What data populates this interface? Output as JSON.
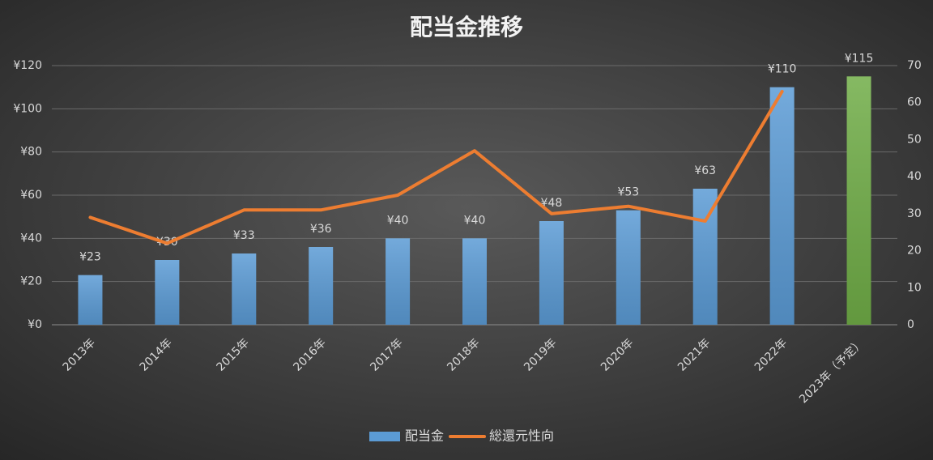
{
  "chart_data": {
    "type": "bar_line",
    "title": "配当金推移",
    "categories": [
      "2013年",
      "2014年",
      "2015年",
      "2016年",
      "2017年",
      "2018年",
      "2019年",
      "2020年",
      "2021年",
      "2022年",
      "2023年（予定）"
    ],
    "series": [
      {
        "name": "配当金",
        "type": "bar",
        "color": "#5b9bd5",
        "colors": [
          "#5b9bd5",
          "#5b9bd5",
          "#5b9bd5",
          "#5b9bd5",
          "#5b9bd5",
          "#5b9bd5",
          "#5b9bd5",
          "#5b9bd5",
          "#5b9bd5",
          "#5b9bd5",
          "#70ad47"
        ],
        "values": [
          23,
          30,
          33,
          36,
          40,
          40,
          48,
          53,
          63,
          110,
          115
        ],
        "value_labels": [
          "¥23",
          "¥30",
          "¥33",
          "¥36",
          "¥40",
          "¥40",
          "¥48",
          "¥53",
          "¥63",
          "¥110",
          "¥115"
        ]
      },
      {
        "name": "総還元性向",
        "type": "line",
        "axis": "y2",
        "color": "#ed7d31",
        "values": [
          29,
          22,
          31,
          31,
          35,
          47,
          30,
          32,
          28,
          63,
          null
        ]
      }
    ],
    "ylim": [
      0,
      120
    ],
    "yticks": [
      {
        "value": 0,
        "label": "¥0"
      },
      {
        "value": 20,
        "label": "¥20"
      },
      {
        "value": 40,
        "label": "¥40"
      },
      {
        "value": 60,
        "label": "¥60"
      },
      {
        "value": 80,
        "label": "¥80"
      },
      {
        "value": 100,
        "label": "¥100"
      },
      {
        "value": 120,
        "label": "¥120"
      }
    ],
    "y2lim": [
      0,
      70
    ],
    "y2ticks": [
      0,
      10,
      20,
      30,
      40,
      50,
      60,
      70
    ],
    "grid": true,
    "legend": "bottom"
  }
}
